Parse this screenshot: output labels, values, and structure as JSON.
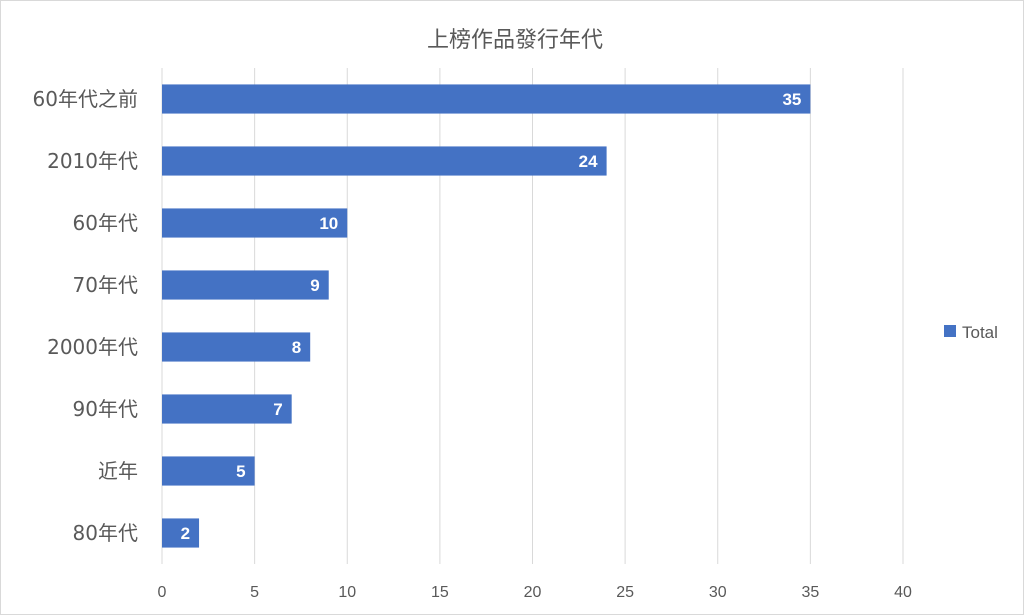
{
  "chart_data": {
    "type": "bar",
    "orientation": "horizontal",
    "title": "上榜作品發行年代",
    "categories": [
      "60年代之前",
      "2010年代",
      "60年代",
      "70年代",
      "2000年代",
      "90年代",
      "近年",
      "80年代"
    ],
    "series": [
      {
        "name": "Total",
        "values": [
          35,
          24,
          10,
          9,
          8,
          7,
          5,
          2
        ]
      }
    ],
    "xlim": [
      0,
      40
    ],
    "xticks": [
      0,
      5,
      10,
      15,
      20,
      25,
      30,
      35,
      40
    ],
    "grid": true,
    "legend": "right",
    "data_labels": true,
    "colors": {
      "bar": "#4472c4"
    }
  }
}
